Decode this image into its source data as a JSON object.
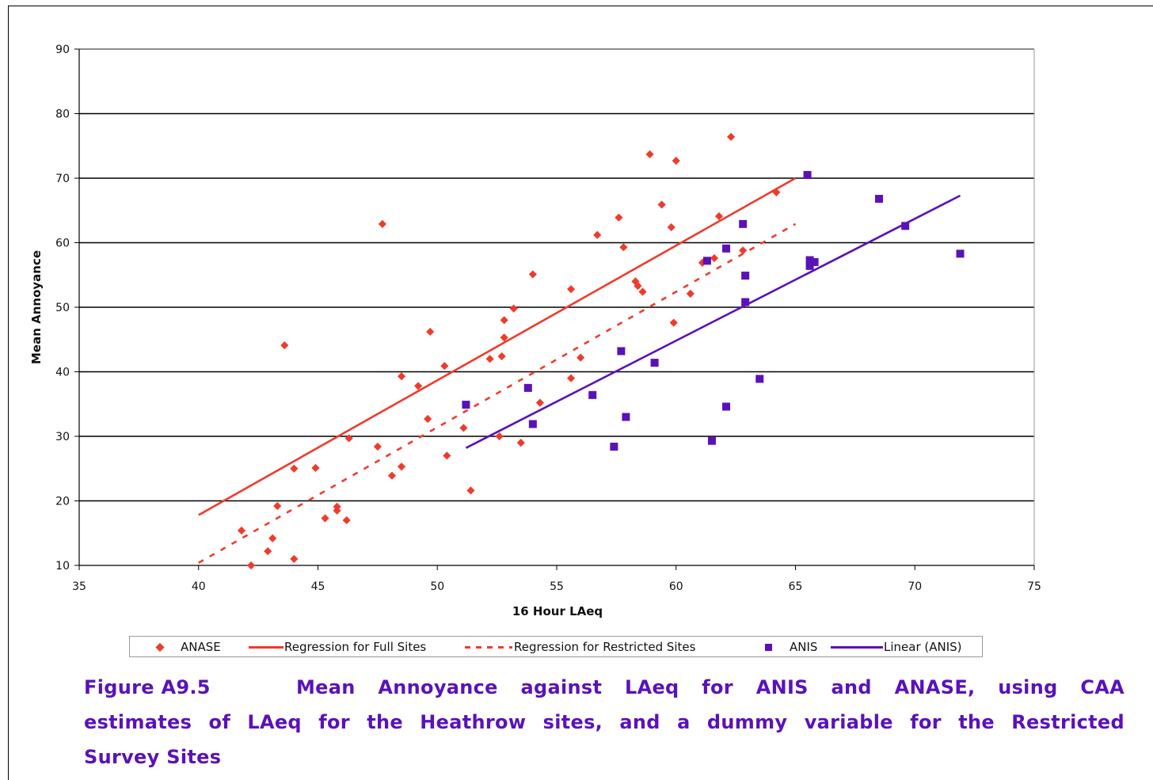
{
  "chart_data": {
    "type": "scatter",
    "xlabel": "16 Hour LAeq",
    "ylabel": "Mean Annoyance",
    "xlim": [
      35,
      75
    ],
    "ylim": [
      10,
      90
    ],
    "xticks": [
      "35",
      "40",
      "45",
      "50",
      "55",
      "60",
      "65",
      "70",
      "75"
    ],
    "yticks": [
      "10",
      "20",
      "30",
      "40",
      "50",
      "60",
      "70",
      "80",
      "90"
    ],
    "grid": "horizontal",
    "legend_position": "bottom",
    "colors": {
      "anase": "#ef3b2c",
      "anis": "#5a12b8"
    },
    "series": [
      {
        "name": "ANASE",
        "kind": "points",
        "marker": "diamond",
        "points": [
          [
            41.8,
            15.4
          ],
          [
            42.2,
            10.0
          ],
          [
            42.9,
            12.2
          ],
          [
            43.1,
            14.2
          ],
          [
            43.3,
            19.2
          ],
          [
            43.6,
            44.1
          ],
          [
            44.0,
            11.0
          ],
          [
            44.0,
            25.0
          ],
          [
            44.9,
            25.1
          ],
          [
            45.3,
            17.3
          ],
          [
            45.8,
            18.5
          ],
          [
            45.8,
            19.1
          ],
          [
            46.2,
            17.0
          ],
          [
            46.3,
            29.7
          ],
          [
            47.5,
            28.4
          ],
          [
            47.7,
            62.9
          ],
          [
            48.1,
            23.9
          ],
          [
            48.5,
            25.3
          ],
          [
            48.5,
            39.3
          ],
          [
            49.2,
            37.8
          ],
          [
            49.6,
            32.7
          ],
          [
            49.7,
            46.2
          ],
          [
            50.3,
            40.9
          ],
          [
            50.4,
            27.0
          ],
          [
            51.1,
            31.3
          ],
          [
            51.4,
            21.6
          ],
          [
            52.2,
            42.0
          ],
          [
            52.6,
            30.0
          ],
          [
            52.7,
            42.4
          ],
          [
            52.8,
            45.3
          ],
          [
            52.8,
            48.0
          ],
          [
            53.2,
            49.8
          ],
          [
            53.5,
            29.0
          ],
          [
            54.0,
            55.1
          ],
          [
            54.3,
            35.2
          ],
          [
            55.6,
            52.8
          ],
          [
            55.6,
            39.0
          ],
          [
            56.0,
            42.2
          ],
          [
            56.7,
            61.2
          ],
          [
            57.6,
            63.9
          ],
          [
            57.8,
            59.3
          ],
          [
            58.3,
            54.0
          ],
          [
            58.4,
            53.3
          ],
          [
            58.6,
            52.4
          ],
          [
            58.9,
            73.7
          ],
          [
            59.4,
            65.9
          ],
          [
            59.8,
            62.4
          ],
          [
            59.9,
            47.6
          ],
          [
            60.0,
            72.7
          ],
          [
            60.6,
            52.1
          ],
          [
            61.1,
            56.9
          ],
          [
            61.6,
            57.6
          ],
          [
            61.8,
            64.1
          ],
          [
            62.3,
            76.4
          ],
          [
            62.8,
            58.8
          ],
          [
            64.2,
            67.8
          ]
        ]
      },
      {
        "name": "Regression for Full Sites",
        "kind": "line",
        "style": "solid",
        "points": [
          [
            40,
            17.8
          ],
          [
            65,
            70.0
          ]
        ]
      },
      {
        "name": "Regression for Restricted Sites",
        "kind": "line",
        "style": "dashed",
        "points": [
          [
            40,
            10.4
          ],
          [
            65,
            62.9
          ]
        ]
      },
      {
        "name": "ANIS",
        "kind": "points",
        "marker": "square",
        "points": [
          [
            51.2,
            34.9
          ],
          [
            53.8,
            37.5
          ],
          [
            54.0,
            31.9
          ],
          [
            56.5,
            36.4
          ],
          [
            57.4,
            28.4
          ],
          [
            57.7,
            43.2
          ],
          [
            57.9,
            33.0
          ],
          [
            59.1,
            41.4
          ],
          [
            61.3,
            57.2
          ],
          [
            61.5,
            29.3
          ],
          [
            62.1,
            59.1
          ],
          [
            62.1,
            34.6
          ],
          [
            62.8,
            62.9
          ],
          [
            62.9,
            54.9
          ],
          [
            62.9,
            50.8
          ],
          [
            63.5,
            38.9
          ],
          [
            65.5,
            70.5
          ],
          [
            65.6,
            56.4
          ],
          [
            65.6,
            57.3
          ],
          [
            65.8,
            57.0
          ],
          [
            68.5,
            66.8
          ],
          [
            69.6,
            62.6
          ],
          [
            71.9,
            58.3
          ]
        ]
      },
      {
        "name": "Linear (ANIS)",
        "kind": "line",
        "style": "solid",
        "points": [
          [
            51.2,
            28.2
          ],
          [
            71.9,
            67.3
          ]
        ]
      }
    ]
  },
  "legend": {
    "items": [
      {
        "label": "ANASE",
        "symbol": "diamond"
      },
      {
        "label": "Regression for Full Sites",
        "symbol": "line-solid-red"
      },
      {
        "label": "Regression for Restricted Sites",
        "symbol": "line-dashed-red"
      },
      {
        "label": "ANIS",
        "symbol": "square"
      },
      {
        "label": "Linear (ANIS)",
        "symbol": "line-solid-purple"
      }
    ]
  },
  "caption": {
    "figure_label": "Figure A9.5",
    "line1": "Mean Annoyance against LAeq for ANIS and ANASE, using CAA",
    "line2": "estimates of LAeq for the Heathrow sites, and a dummy variable for the Restricted",
    "line3": "Survey Sites"
  }
}
